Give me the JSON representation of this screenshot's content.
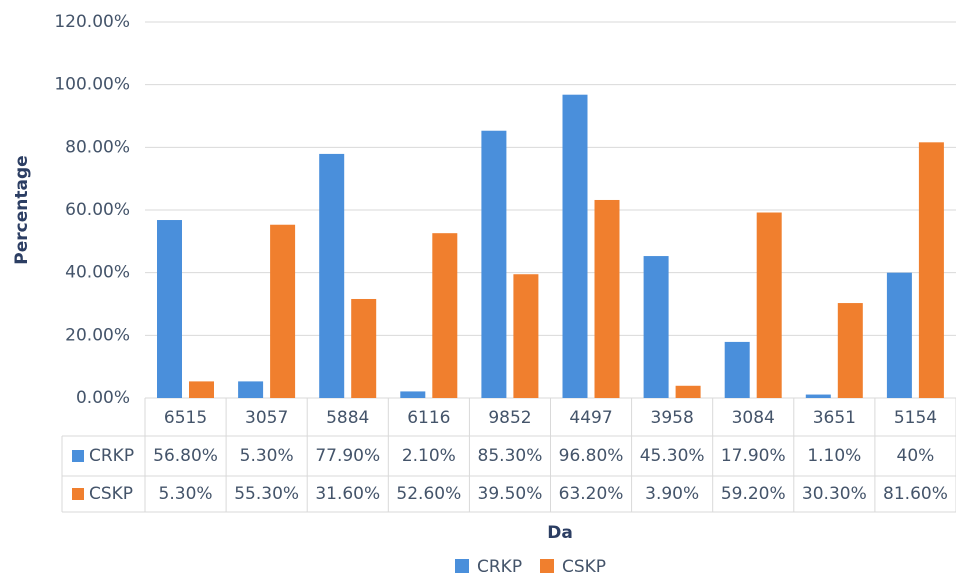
{
  "chart_data": {
    "type": "bar",
    "x_label": "Da",
    "y_label": "Percentage",
    "categories": [
      "6515",
      "3057",
      "5884",
      "6116",
      "9852",
      "4497",
      "3958",
      "3084",
      "3651",
      "5154"
    ],
    "series": [
      {
        "name": "CRKP",
        "color": "#4a8fdb",
        "values": [
          56.8,
          5.3,
          77.9,
          2.1,
          85.3,
          96.8,
          45.3,
          17.9,
          1.1,
          40
        ],
        "value_labels": [
          "56.80%",
          "5.30%",
          "77.90%",
          "2.10%",
          "85.30%",
          "96.80%",
          "45.30%",
          "17.90%",
          "1.10%",
          "40%"
        ]
      },
      {
        "name": "CSKP",
        "color": "#f07f2e",
        "values": [
          5.3,
          55.3,
          31.6,
          52.6,
          39.5,
          63.2,
          3.9,
          59.2,
          30.3,
          81.6
        ],
        "value_labels": [
          "5.30%",
          "55.30%",
          "31.60%",
          "52.60%",
          "39.50%",
          "63.20%",
          "3.90%",
          "59.20%",
          "30.30%",
          "81.60%"
        ]
      }
    ],
    "ylim": [
      0,
      120
    ],
    "yticks": [
      {
        "value": 0,
        "label": "0.00%"
      },
      {
        "value": 20,
        "label": "20.00%"
      },
      {
        "value": 40,
        "label": "40.00%"
      },
      {
        "value": 60,
        "label": "60.00%"
      },
      {
        "value": 80,
        "label": "80.00%"
      },
      {
        "value": 100,
        "label": "100.00%"
      },
      {
        "value": 120,
        "label": "120.00%"
      }
    ],
    "grid": true,
    "legend": "bottom"
  }
}
